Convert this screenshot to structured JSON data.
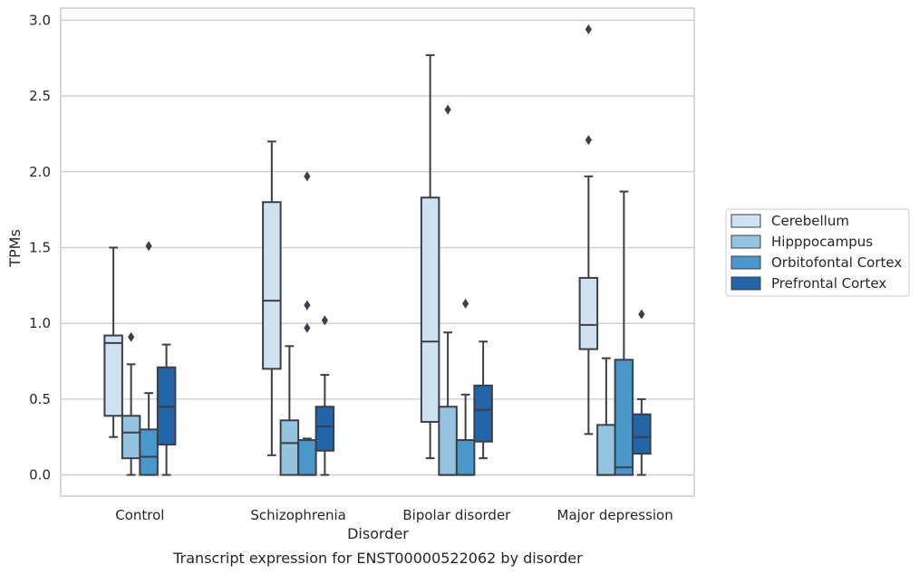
{
  "chart_data": {
    "type": "boxplot",
    "title": "Transcript expression for ENST00000522062 by disorder",
    "xlabel": "Disorder",
    "ylabel": "TPMs",
    "ylim": [
      -0.14,
      3.08
    ],
    "yticks": [
      "0.0",
      "0.5",
      "1.0",
      "1.5",
      "2.0",
      "2.5",
      "3.0"
    ],
    "grid": true,
    "legend_position": "right",
    "categories": [
      "Control",
      "Schizophrenia",
      "Bipolar disorder",
      "Major depression"
    ],
    "series": [
      {
        "name": "Cerebellum",
        "color": "#d0e1f2",
        "boxes": [
          {
            "q1": 0.39,
            "median": 0.87,
            "q3": 0.92,
            "wlow": 0.25,
            "whigh": 1.5,
            "outliers": []
          },
          {
            "q1": 0.7,
            "median": 1.15,
            "q3": 1.8,
            "wlow": 0.13,
            "whigh": 2.2,
            "outliers": []
          },
          {
            "q1": 0.35,
            "median": 0.88,
            "q3": 1.83,
            "wlow": 0.11,
            "whigh": 2.77,
            "outliers": []
          },
          {
            "q1": 0.83,
            "median": 0.99,
            "q3": 1.3,
            "wlow": 0.27,
            "whigh": 1.97,
            "outliers": [
              2.21,
              2.94
            ]
          }
        ]
      },
      {
        "name": "Hipppocampus",
        "color": "#94c4df",
        "boxes": [
          {
            "q1": 0.11,
            "median": 0.28,
            "q3": 0.39,
            "wlow": 0.0,
            "whigh": 0.73,
            "outliers": [
              0.91
            ]
          },
          {
            "q1": 0.0,
            "median": 0.21,
            "q3": 0.36,
            "wlow": 0.0,
            "whigh": 0.85,
            "outliers": []
          },
          {
            "q1": 0.0,
            "median": 0.0,
            "q3": 0.45,
            "wlow": 0.0,
            "whigh": 0.94,
            "outliers": [
              2.41
            ]
          },
          {
            "q1": 0.0,
            "median": 0.0,
            "q3": 0.33,
            "wlow": 0.0,
            "whigh": 0.77,
            "outliers": []
          }
        ]
      },
      {
        "name": "Orbitofontal Cortex",
        "color": "#4a98c9",
        "boxes": [
          {
            "q1": 0.0,
            "median": 0.12,
            "q3": 0.3,
            "wlow": 0.0,
            "whigh": 0.54,
            "outliers": [
              1.51
            ]
          },
          {
            "q1": 0.0,
            "median": 0.0,
            "q3": 0.23,
            "wlow": 0.0,
            "whigh": 0.24,
            "outliers": [
              0.97,
              1.12,
              1.97
            ]
          },
          {
            "q1": 0.0,
            "median": 0.0,
            "q3": 0.23,
            "wlow": 0.0,
            "whigh": 0.53,
            "outliers": [
              1.13
            ]
          },
          {
            "q1": 0.0,
            "median": 0.05,
            "q3": 0.76,
            "wlow": 0.0,
            "whigh": 1.87,
            "outliers": []
          }
        ]
      },
      {
        "name": "Prefrontal Cortex",
        "color": "#2264a8",
        "boxes": [
          {
            "q1": 0.2,
            "median": 0.45,
            "q3": 0.71,
            "wlow": 0.0,
            "whigh": 0.86,
            "outliers": []
          },
          {
            "q1": 0.16,
            "median": 0.32,
            "q3": 0.45,
            "wlow": 0.0,
            "whigh": 0.66,
            "outliers": [
              1.02
            ]
          },
          {
            "q1": 0.22,
            "median": 0.43,
            "q3": 0.59,
            "wlow": 0.11,
            "whigh": 0.88,
            "outliers": []
          },
          {
            "q1": 0.14,
            "median": 0.25,
            "q3": 0.4,
            "wlow": 0.0,
            "whigh": 0.5,
            "outliers": [
              1.06
            ]
          }
        ]
      }
    ]
  }
}
